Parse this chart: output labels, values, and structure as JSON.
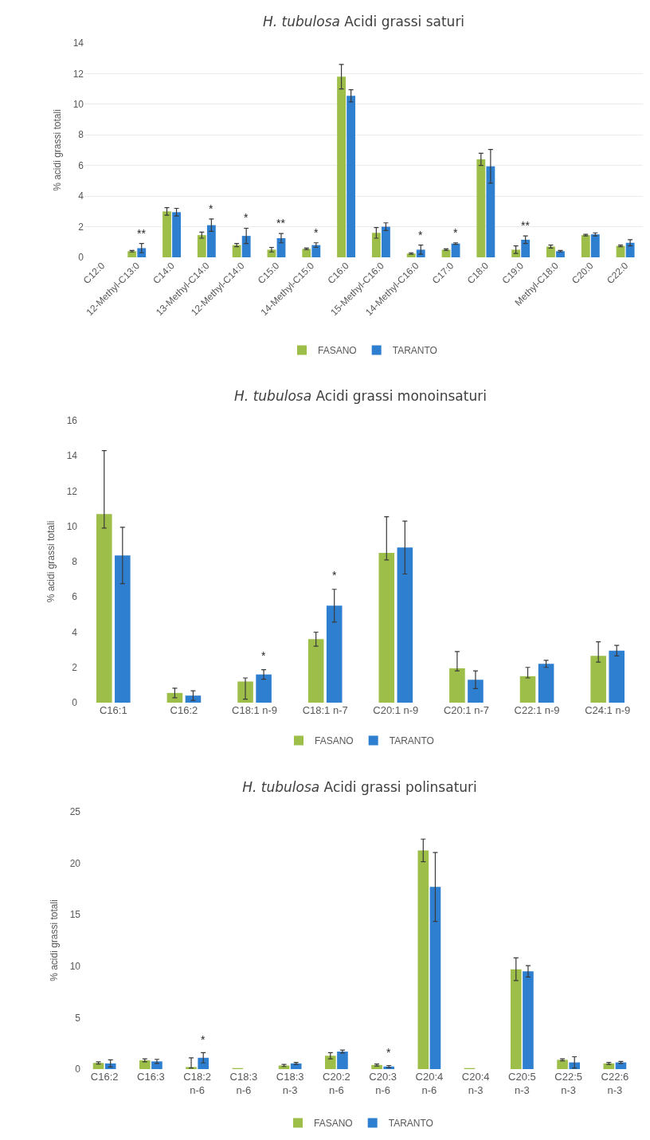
{
  "chart_data": [
    {
      "type": "bar",
      "title": "H. tubulosa Acidi grassi saturi",
      "ylabel": "% acidi grassi totali",
      "categories": [
        "C12:0",
        "12-Methyl-C13:0",
        "C14:0",
        "13-Methyl-C14:0",
        "12-Methyl-C14:0",
        "C15:0",
        "14-Methyl-C15:0",
        "C16:0",
        "15-Methyl-C16:0",
        "14-Methyl-C16:0",
        "C17:0",
        "C18:0",
        "C19:0",
        "Methyl-C18:0",
        "C20:0",
        "C22:0"
      ],
      "series": [
        {
          "name": "FASANO",
          "color": "#9dbf4a",
          "values": [
            0,
            0.4,
            3.0,
            1.45,
            0.8,
            0.5,
            0.55,
            11.8,
            1.6,
            0.25,
            0.5,
            6.4,
            0.5,
            0.7,
            1.45,
            0.75
          ],
          "errors": [
            null,
            0.05,
            0.25,
            0.2,
            0.1,
            0.15,
            0.05,
            0.8,
            0.35,
            0.05,
            0.05,
            0.4,
            0.25,
            0.1,
            0.05,
            0.05
          ]
        },
        {
          "name": "TARANTO",
          "color": "#2f7fd1",
          "values": [
            0,
            0.6,
            2.95,
            2.1,
            1.4,
            1.25,
            0.8,
            10.55,
            2.0,
            0.5,
            0.9,
            5.95,
            1.15,
            0.4,
            1.5,
            0.95
          ],
          "errors": [
            null,
            0.3,
            0.25,
            0.4,
            0.5,
            0.3,
            0.15,
            0.4,
            0.25,
            0.3,
            0.05,
            1.1,
            0.25,
            0.05,
            0.1,
            0.2
          ]
        }
      ],
      "ylim": [
        0,
        14
      ],
      "yticks": [
        0,
        2,
        4,
        6,
        8,
        10,
        12,
        14
      ],
      "grid": "y",
      "legend": "bottom",
      "annotations": [
        {
          "text": "**",
          "x": "12-Methyl-C13:0",
          "y": 0.6
        },
        {
          "text": "*",
          "x": "13-Methyl-C14:0",
          "y": 2.1
        },
        {
          "text": "*",
          "x": "12-Methyl-C14:0",
          "y": 1.4
        },
        {
          "text": "**",
          "x": "C15:0",
          "y": 1.25
        },
        {
          "text": "*",
          "x": "14-Methyl-C15:0",
          "y": 0.8
        },
        {
          "text": "*",
          "x": "14-Methyl-C16:0",
          "y": 0.5
        },
        {
          "text": "*",
          "x": "C17:0",
          "y": 0.9
        },
        {
          "text": "**",
          "x": "C19:0",
          "y": 1.15
        }
      ]
    },
    {
      "type": "bar",
      "title": "H. tubulosa Acidi grassi monoinsaturi",
      "ylabel": "% acidi grassi totali",
      "categories": [
        "C16:1",
        "C16:2",
        "C18:1 n-9",
        "C18:1 n-7",
        "C20:1 n-9",
        "C20:1 n-7",
        "C22:1 n-9",
        "C24:1 n-9"
      ],
      "series": [
        {
          "name": "FASANO",
          "color": "#9dbf4a",
          "values": [
            10.7,
            0.55,
            1.2,
            3.6,
            8.5,
            1.95,
            1.5,
            2.65
          ],
          "errors": [
            [
              9.9,
              14.3
            ],
            0.27,
            [
              0.2,
              1.4
            ],
            0.4,
            [
              8.1,
              10.55
            ],
            [
              1.8,
              2.9
            ],
            [
              1.4,
              2.0
            ],
            [
              2.3,
              3.45
            ]
          ]
        },
        {
          "name": "TARANTO",
          "color": "#2f7fd1",
          "values": [
            8.35,
            0.4,
            1.6,
            5.5,
            8.8,
            1.3,
            2.2,
            2.95
          ],
          "errors": [
            1.6,
            0.27,
            0.27,
            0.93,
            1.5,
            0.5,
            0.2,
            0.3
          ]
        }
      ],
      "ylim": [
        0,
        16
      ],
      "yticks": [
        0,
        2,
        4,
        6,
        8,
        10,
        12,
        14,
        16
      ],
      "legend": "bottom",
      "annotations": [
        {
          "text": "*",
          "x": "C18:1 n-9",
          "y": 1.6
        },
        {
          "text": "*",
          "x": "C18:1 n-7",
          "y": 5.5
        }
      ]
    },
    {
      "type": "bar",
      "title": "H. tubulosa Acidi grassi polinsaturi",
      "ylabel": "% acidi grassi totali",
      "categories": [
        "C16:2",
        "C16:3",
        "C18:2 n-6",
        "C18:3 n-6",
        "C18:3 n-3",
        "C20:2 n-6",
        "C20:3 n-6",
        "C20:4 n-6",
        "C20:4 n-3",
        "C20:5 n-3",
        "C22:5 n-3",
        "C22:6 n-3"
      ],
      "series": [
        {
          "name": "FASANO",
          "color": "#9dbf4a",
          "values": [
            0.6,
            0.85,
            0.2,
            0.1,
            0.35,
            1.3,
            0.4,
            21.25,
            0.1,
            9.7,
            0.9,
            0.55
          ],
          "errors": [
            0.1,
            0.15,
            [
              0.1,
              1.1
            ],
            null,
            0.1,
            0.3,
            0.1,
            1.1,
            null,
            1.1,
            0.1,
            0.1
          ]
        },
        {
          "name": "TARANTO",
          "color": "#2f7fd1",
          "values": [
            0.55,
            0.75,
            1.1,
            0,
            0.55,
            1.7,
            0.25,
            17.7,
            0,
            9.5,
            0.65,
            0.65
          ],
          "errors": [
            0.35,
            0.2,
            0.5,
            null,
            0.1,
            0.15,
            0.1,
            3.35,
            null,
            0.55,
            0.55,
            0.1
          ]
        }
      ],
      "ylim": [
        0,
        25
      ],
      "yticks": [
        0,
        5,
        10,
        15,
        20,
        25
      ],
      "legend": "bottom",
      "annotations": [
        {
          "text": "*",
          "x": "C18:2 n-6",
          "y": 1.1
        },
        {
          "text": "*",
          "x": "C20:3 n-6",
          "y": 0.25
        }
      ]
    }
  ]
}
